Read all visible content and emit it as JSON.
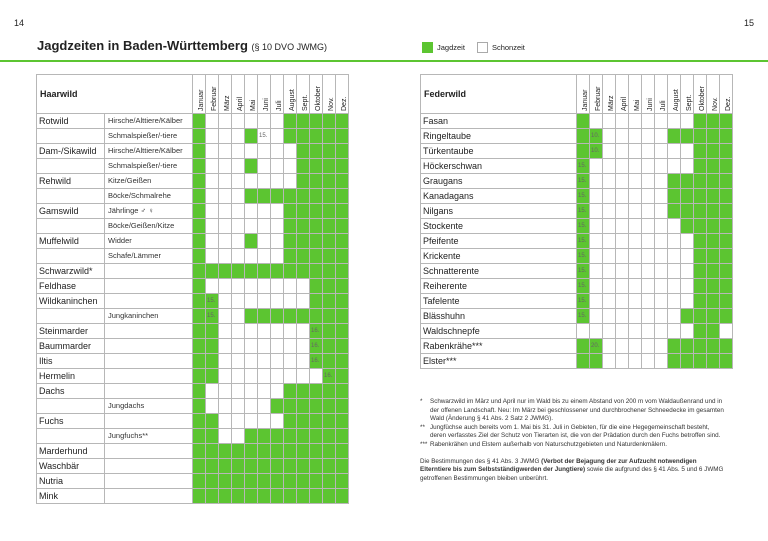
{
  "page_left": "14",
  "page_right": "15",
  "title": "Jagdzeiten in Baden-Württemberg",
  "title_ref": "(§ 10 DVO JWMG)",
  "legend": {
    "jagdzeit": "Jagdzeit",
    "schonzeit": "Schonzeit",
    "green": "#5cc531"
  },
  "months": [
    "Januar",
    "Februar",
    "März",
    "April",
    "Mai",
    "Juni",
    "Juli",
    "August",
    "Sept.",
    "Oktober",
    "Nov.",
    "Dez."
  ],
  "haarwild": {
    "header": "Haarwild",
    "rows": [
      {
        "a": "Rotwild",
        "b": "Hirsche/Alttiere/Kälber",
        "g": [
          1,
          0,
          0,
          0,
          0,
          0,
          0,
          1,
          1,
          1,
          1,
          1
        ]
      },
      {
        "a": "",
        "b": "Schmalspießer/-tiere",
        "g": [
          1,
          0,
          0,
          0,
          1,
          0,
          0,
          1,
          1,
          1,
          1,
          1
        ],
        "note": {
          "i": 5,
          "t": "15."
        }
      },
      {
        "a": "Dam-/Sikawild",
        "b": "Hirsche/Alttiere/Kälber",
        "g": [
          1,
          0,
          0,
          0,
          0,
          0,
          0,
          0,
          1,
          1,
          1,
          1
        ]
      },
      {
        "a": "",
        "b": "Schmalspießer/-tiere",
        "g": [
          1,
          0,
          0,
          0,
          1,
          0,
          0,
          0,
          1,
          1,
          1,
          1
        ]
      },
      {
        "a": "Rehwild",
        "b": "Kitze/Geißen",
        "g": [
          1,
          0,
          0,
          0,
          0,
          0,
          0,
          0,
          1,
          1,
          1,
          1
        ]
      },
      {
        "a": "",
        "b": "Böcke/Schmalrehe",
        "g": [
          1,
          0,
          0,
          0,
          1,
          1,
          1,
          1,
          1,
          1,
          1,
          1
        ]
      },
      {
        "a": "Gamswild",
        "b": "Jährlinge ♂ ♀",
        "g": [
          1,
          0,
          0,
          0,
          0,
          0,
          0,
          1,
          1,
          1,
          1,
          1
        ]
      },
      {
        "a": "",
        "b": "Böcke/Geißen/Kitze",
        "g": [
          1,
          0,
          0,
          0,
          0,
          0,
          0,
          1,
          1,
          1,
          1,
          1
        ]
      },
      {
        "a": "Muffelwild",
        "b": "Widder",
        "g": [
          1,
          0,
          0,
          0,
          1,
          0,
          0,
          1,
          1,
          1,
          1,
          1
        ]
      },
      {
        "a": "",
        "b": "Schafe/Lämmer",
        "g": [
          1,
          0,
          0,
          0,
          0,
          0,
          0,
          1,
          1,
          1,
          1,
          1
        ]
      },
      {
        "a": "Schwarzwild*",
        "b": "",
        "g": [
          1,
          1,
          1,
          1,
          1,
          1,
          1,
          1,
          1,
          1,
          1,
          1
        ]
      },
      {
        "a": "Feldhase",
        "b": "",
        "g": [
          1,
          0,
          0,
          0,
          0,
          0,
          0,
          0,
          0,
          1,
          1,
          1
        ]
      },
      {
        "a": "Wildkaninchen",
        "b": "",
        "g": [
          1,
          1,
          0,
          0,
          0,
          0,
          0,
          0,
          0,
          1,
          1,
          1
        ],
        "note": {
          "i": 1,
          "t": "15."
        }
      },
      {
        "a": "",
        "b": "Jungkaninchen",
        "g": [
          1,
          1,
          0,
          0,
          1,
          1,
          1,
          1,
          1,
          1,
          1,
          1
        ],
        "note": {
          "i": 1,
          "t": "15."
        }
      },
      {
        "a": "Steinmarder",
        "b": "",
        "g": [
          1,
          1,
          0,
          0,
          0,
          0,
          0,
          0,
          0,
          1,
          1,
          1
        ],
        "note": {
          "i": 9,
          "t": "16."
        }
      },
      {
        "a": "Baummarder",
        "b": "",
        "g": [
          1,
          1,
          0,
          0,
          0,
          0,
          0,
          0,
          0,
          1,
          1,
          1
        ],
        "note": {
          "i": 9,
          "t": "16."
        }
      },
      {
        "a": "Iltis",
        "b": "",
        "g": [
          1,
          1,
          0,
          0,
          0,
          0,
          0,
          0,
          0,
          1,
          1,
          1
        ],
        "note": {
          "i": 9,
          "t": "16."
        }
      },
      {
        "a": "Hermelin",
        "b": "",
        "g": [
          1,
          1,
          0,
          0,
          0,
          0,
          0,
          0,
          0,
          0,
          1,
          1
        ],
        "note": {
          "i": 10,
          "t": "16."
        }
      },
      {
        "a": "Dachs",
        "b": "",
        "g": [
          1,
          0,
          0,
          0,
          0,
          0,
          0,
          1,
          1,
          1,
          1,
          1
        ]
      },
      {
        "a": "",
        "b": "Jungdachs",
        "g": [
          1,
          0,
          0,
          0,
          0,
          0,
          1,
          1,
          1,
          1,
          1,
          1
        ]
      },
      {
        "a": "Fuchs",
        "b": "",
        "g": [
          1,
          1,
          0,
          0,
          0,
          0,
          0,
          1,
          1,
          1,
          1,
          1
        ]
      },
      {
        "a": "",
        "b": "Jungfuchs**",
        "g": [
          1,
          1,
          0,
          0,
          1,
          1,
          1,
          1,
          1,
          1,
          1,
          1
        ]
      },
      {
        "a": "Marderhund",
        "b": "",
        "g": [
          1,
          1,
          1,
          1,
          1,
          1,
          1,
          1,
          1,
          1,
          1,
          1
        ]
      },
      {
        "a": "Waschbär",
        "b": "",
        "g": [
          1,
          1,
          1,
          1,
          1,
          1,
          1,
          1,
          1,
          1,
          1,
          1
        ]
      },
      {
        "a": "Nutria",
        "b": "",
        "g": [
          1,
          1,
          1,
          1,
          1,
          1,
          1,
          1,
          1,
          1,
          1,
          1
        ]
      },
      {
        "a": "Mink",
        "b": "",
        "g": [
          1,
          1,
          1,
          1,
          1,
          1,
          1,
          1,
          1,
          1,
          1,
          1
        ]
      }
    ]
  },
  "federwild": {
    "header": "Federwild",
    "rows": [
      {
        "a": "Fasan",
        "g": [
          1,
          0,
          0,
          0,
          0,
          0,
          0,
          0,
          0,
          1,
          1,
          1
        ]
      },
      {
        "a": "Ringeltaube",
        "g": [
          1,
          1,
          0,
          0,
          0,
          0,
          0,
          1,
          1,
          1,
          1,
          1
        ],
        "note": {
          "i": 1,
          "t": "10."
        }
      },
      {
        "a": "Türkentaube",
        "g": [
          1,
          1,
          0,
          0,
          0,
          0,
          0,
          0,
          0,
          1,
          1,
          1
        ],
        "note": {
          "i": 1,
          "t": "10."
        }
      },
      {
        "a": "Höckerschwan",
        "g": [
          1,
          0,
          0,
          0,
          0,
          0,
          0,
          0,
          0,
          1,
          1,
          1
        ],
        "note": {
          "i": 0,
          "t": "15."
        }
      },
      {
        "a": "Graugans",
        "g": [
          1,
          0,
          0,
          0,
          0,
          0,
          0,
          1,
          1,
          1,
          1,
          1
        ],
        "note": {
          "i": 0,
          "t": "15."
        }
      },
      {
        "a": "Kanadagans",
        "g": [
          1,
          0,
          0,
          0,
          0,
          0,
          0,
          1,
          1,
          1,
          1,
          1
        ],
        "note": {
          "i": 0,
          "t": "15."
        }
      },
      {
        "a": "Nilgans",
        "g": [
          1,
          0,
          0,
          0,
          0,
          0,
          0,
          1,
          1,
          1,
          1,
          1
        ],
        "note": {
          "i": 0,
          "t": "15."
        }
      },
      {
        "a": "Stockente",
        "g": [
          1,
          0,
          0,
          0,
          0,
          0,
          0,
          0,
          1,
          1,
          1,
          1
        ],
        "note": {
          "i": 0,
          "t": "15."
        }
      },
      {
        "a": "Pfeifente",
        "g": [
          1,
          0,
          0,
          0,
          0,
          0,
          0,
          0,
          0,
          1,
          1,
          1
        ],
        "note": {
          "i": 0,
          "t": "15."
        }
      },
      {
        "a": "Krickente",
        "g": [
          1,
          0,
          0,
          0,
          0,
          0,
          0,
          0,
          0,
          1,
          1,
          1
        ],
        "note": {
          "i": 0,
          "t": "15."
        }
      },
      {
        "a": "Schnatterente",
        "g": [
          1,
          0,
          0,
          0,
          0,
          0,
          0,
          0,
          0,
          1,
          1,
          1
        ],
        "note": {
          "i": 0,
          "t": "15."
        }
      },
      {
        "a": "Reiherente",
        "g": [
          1,
          0,
          0,
          0,
          0,
          0,
          0,
          0,
          0,
          1,
          1,
          1
        ],
        "note": {
          "i": 0,
          "t": "15."
        }
      },
      {
        "a": "Tafelente",
        "g": [
          1,
          0,
          0,
          0,
          0,
          0,
          0,
          0,
          0,
          1,
          1,
          1
        ],
        "note": {
          "i": 0,
          "t": "15."
        }
      },
      {
        "a": "Blässhuhn",
        "g": [
          1,
          0,
          0,
          0,
          0,
          0,
          0,
          0,
          1,
          1,
          1,
          1
        ],
        "note": {
          "i": 0,
          "t": "15."
        }
      },
      {
        "a": "Waldschnepfe",
        "g": [
          0,
          0,
          0,
          0,
          0,
          0,
          0,
          0,
          0,
          1,
          1,
          0
        ]
      },
      {
        "a": "Rabenkrähe***",
        "g": [
          1,
          1,
          0,
          0,
          0,
          0,
          0,
          1,
          1,
          1,
          1,
          1
        ],
        "note": {
          "i": 1,
          "t": "20."
        }
      },
      {
        "a": "Elster***",
        "g": [
          1,
          1,
          0,
          0,
          0,
          0,
          0,
          1,
          1,
          1,
          1,
          1
        ]
      }
    ]
  },
  "footnotes": [
    {
      "m": "*",
      "t": "Schwarzwild im März und April nur im Wald bis zu einem Abstand von 200 m vom Waldaußenrand und in der offenen Landschaft. Neu: Im März bei geschlossener und durchbrochener Schneedecke im gesamten Wald (Änderung § 41 Abs. 2 Satz 2 JWMG)."
    },
    {
      "m": "**",
      "t": "Jungfüchse auch bereits vom 1. Mai bis 31. Juli in Gebieten, für die eine Hegegemeinschaft besteht, deren verfasstes Ziel der Schutz von Tierarten ist, die von der Prädation durch den Fuchs betroffen sind."
    },
    {
      "m": "***",
      "t": "Rabenkrähen und Elstern außerhalb von Naturschutzgebieten und Naturdenkmälern."
    }
  ],
  "closing": {
    "pre": "Die Bestimmungen des § 41 Abs. 3 JWMG ",
    "bold": "(Verbot der Bejagung der zur Aufzucht notwendigen Elterntiere bis zum Selbstständigwerden der Jungtiere)",
    "post": " sowie die aufgrund des § 41 Abs. 5 und 6 JWMG getroffenen Bestimmungen bleiben unberührt."
  }
}
